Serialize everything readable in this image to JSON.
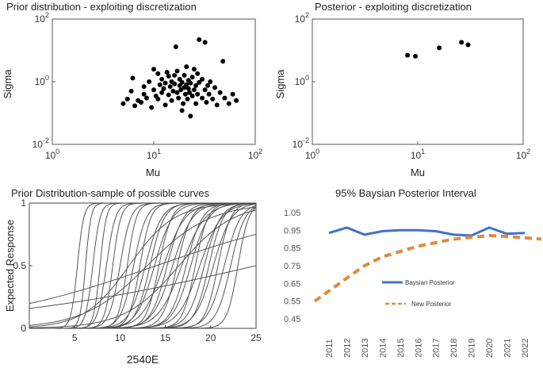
{
  "chart_data": [
    {
      "type": "scatter",
      "title": "Prior distribution - exploiting discretization",
      "xlabel": "Mu",
      "ylabel": "Sigma",
      "xscale": "log",
      "yscale": "log",
      "xlim": [
        1,
        100
      ],
      "ylim": [
        0.01,
        100
      ],
      "xticks": [
        {
          "v": 1,
          "base": "10",
          "exp": "0"
        },
        {
          "v": 10,
          "base": "10",
          "exp": "1"
        },
        {
          "v": 100,
          "base": "10",
          "exp": "2"
        }
      ],
      "yticks": [
        {
          "v": 0.01,
          "base": "10",
          "exp": "-2"
        },
        {
          "v": 1,
          "base": "10",
          "exp": "0"
        },
        {
          "v": 100,
          "base": "10",
          "exp": "2"
        }
      ],
      "color": "#000000",
      "points": [
        [
          5.0,
          0.2
        ],
        [
          5.5,
          0.28
        ],
        [
          6.0,
          0.5
        ],
        [
          6.5,
          0.17
        ],
        [
          6.2,
          1.3
        ],
        [
          7.0,
          0.25
        ],
        [
          7.5,
          0.22
        ],
        [
          8.0,
          0.4
        ],
        [
          8.5,
          0.3
        ],
        [
          8.0,
          0.7
        ],
        [
          9.0,
          1.0
        ],
        [
          9.5,
          0.15
        ],
        [
          10.0,
          2.5
        ],
        [
          10.0,
          0.55
        ],
        [
          10.5,
          0.35
        ],
        [
          11.0,
          1.8
        ],
        [
          11.0,
          0.28
        ],
        [
          11.5,
          0.8
        ],
        [
          12.0,
          0.45
        ],
        [
          12.0,
          1.2
        ],
        [
          12.5,
          0.6
        ],
        [
          13.0,
          0.18
        ],
        [
          13.0,
          0.9
        ],
        [
          13.5,
          2.0
        ],
        [
          14.0,
          0.38
        ],
        [
          14.0,
          1.5
        ],
        [
          14.5,
          0.7
        ],
        [
          15.0,
          0.25
        ],
        [
          15.0,
          1.0
        ],
        [
          15.5,
          0.5
        ],
        [
          16.0,
          0.85
        ],
        [
          16.0,
          1.6
        ],
        [
          16.5,
          13.0
        ],
        [
          17.0,
          0.45
        ],
        [
          17.0,
          2.2
        ],
        [
          17.5,
          0.3
        ],
        [
          18.0,
          0.75
        ],
        [
          18.0,
          1.2
        ],
        [
          18.5,
          0.55
        ],
        [
          19.0,
          0.95
        ],
        [
          19.0,
          0.12
        ],
        [
          19.5,
          0.2
        ],
        [
          20.0,
          0.65
        ],
        [
          20.0,
          1.6
        ],
        [
          20.5,
          0.4
        ],
        [
          21.0,
          0.8
        ],
        [
          21.0,
          3.0
        ],
        [
          21.5,
          0.28
        ],
        [
          22.0,
          0.6
        ],
        [
          22.0,
          1.1
        ],
        [
          22.5,
          0.45
        ],
        [
          23.0,
          0.08
        ],
        [
          23.0,
          0.9
        ],
        [
          24.0,
          0.35
        ],
        [
          24.0,
          1.4
        ],
        [
          25.0,
          0.55
        ],
        [
          25.0,
          2.5
        ],
        [
          26.0,
          0.2
        ],
        [
          26.0,
          0.75
        ],
        [
          27.0,
          1.8
        ],
        [
          27.0,
          0.4
        ],
        [
          28.0,
          22.0
        ],
        [
          28.0,
          0.95
        ],
        [
          30.0,
          0.3
        ],
        [
          30.0,
          1.2
        ],
        [
          32.0,
          0.55
        ],
        [
          32.0,
          18.0
        ],
        [
          33.0,
          0.22
        ],
        [
          34.0,
          0.75
        ],
        [
          35.0,
          0.4
        ],
        [
          36.0,
          1.0
        ],
        [
          38.0,
          0.28
        ],
        [
          40.0,
          0.65
        ],
        [
          42.0,
          0.18
        ],
        [
          45.0,
          0.45
        ],
        [
          48.0,
          4.5
        ],
        [
          50.0,
          0.3
        ],
        [
          55.0,
          0.2
        ],
        [
          60.0,
          0.4
        ],
        [
          65.0,
          0.25
        ]
      ]
    },
    {
      "type": "scatter",
      "title": "Posterior -  exploiting discretization",
      "xlabel": "Mu",
      "ylabel": "Sigma",
      "xscale": "log",
      "yscale": "log",
      "xlim": [
        1,
        100
      ],
      "ylim": [
        0.01,
        100
      ],
      "xticks": [
        {
          "v": 1,
          "base": "10",
          "exp": "0"
        },
        {
          "v": 10,
          "base": "10",
          "exp": "1"
        },
        {
          "v": 100,
          "base": "10",
          "exp": "2"
        }
      ],
      "yticks": [
        {
          "v": 0.01,
          "base": "10",
          "exp": "-2"
        },
        {
          "v": 1,
          "base": "10",
          "exp": "0"
        },
        {
          "v": 100,
          "base": "10",
          "exp": "2"
        }
      ],
      "color": "#000000",
      "points": [
        [
          8.0,
          7.0
        ],
        [
          9.5,
          6.5
        ],
        [
          16.0,
          12.0
        ],
        [
          26.0,
          18.0
        ],
        [
          30.0,
          15.0
        ]
      ]
    },
    {
      "type": "line",
      "title": "Prior Distribution-sample of possible curves",
      "xlabel": "2540E",
      "ylabel": "Expected Response",
      "xlim": [
        0,
        25
      ],
      "ylim": [
        0,
        1
      ],
      "xticks": [
        5,
        10,
        15,
        20,
        25
      ],
      "yticks": [
        0,
        0.5,
        1
      ],
      "color": "#555555",
      "curves": [
        {
          "mu": 5.3,
          "s": 0.35
        },
        {
          "mu": 6.2,
          "s": 0.3
        },
        {
          "mu": 7.0,
          "s": 0.4
        },
        {
          "mu": 7.8,
          "s": 0.35
        },
        {
          "mu": 8.5,
          "s": 0.5
        },
        {
          "mu": 9.2,
          "s": 0.45
        },
        {
          "mu": 10.0,
          "s": 0.6
        },
        {
          "mu": 10.8,
          "s": 0.5
        },
        {
          "mu": 11.5,
          "s": 0.7
        },
        {
          "mu": 12.2,
          "s": 0.6
        },
        {
          "mu": 12.8,
          "s": 0.9
        },
        {
          "mu": 13.3,
          "s": 0.8
        },
        {
          "mu": 13.8,
          "s": 1.0
        },
        {
          "mu": 14.3,
          "s": 0.7
        },
        {
          "mu": 14.8,
          "s": 1.2
        },
        {
          "mu": 15.2,
          "s": 0.9
        },
        {
          "mu": 15.8,
          "s": 1.1
        },
        {
          "mu": 16.3,
          "s": 0.8
        },
        {
          "mu": 16.8,
          "s": 1.3
        },
        {
          "mu": 17.3,
          "s": 0.9
        },
        {
          "mu": 17.8,
          "s": 1.0
        },
        {
          "mu": 18.3,
          "s": 0.7
        },
        {
          "mu": 18.8,
          "s": 1.2
        },
        {
          "mu": 19.3,
          "s": 0.9
        },
        {
          "mu": 19.8,
          "s": 0.8
        },
        {
          "mu": 20.3,
          "s": 1.0
        },
        {
          "mu": 20.8,
          "s": 0.7
        },
        {
          "mu": 21.5,
          "s": 0.9
        },
        {
          "mu": 22.2,
          "s": 0.8
        },
        {
          "mu": 23.0,
          "s": 0.6
        },
        {
          "mu": 11.0,
          "s": 2.5
        },
        {
          "mu": 16.5,
          "s": 3.0
        },
        {
          "mu": 13.0,
          "s": 3.5
        },
        {
          "mu": 14.0,
          "s": 10.0
        },
        {
          "mu": 25.0,
          "s": 15.0
        }
      ]
    },
    {
      "type": "line",
      "title": "95% Baysian Posterior Interval",
      "xlabel": "",
      "ylabel": "",
      "ylim": [
        0.45,
        1.05
      ],
      "yticks": [
        "1.05",
        "0.95",
        "0.85",
        "0.75",
        "0.65",
        "0.55",
        "0.45"
      ],
      "categories": [
        "2011",
        "2012",
        "2013",
        "2014",
        "2015",
        "2016",
        "2017",
        "2018",
        "2019",
        "2020",
        "2021",
        "2022"
      ],
      "legend_position": "lower-left",
      "series": [
        {
          "name": "Baysian Posterior",
          "color": "#4472c4",
          "style": "solid",
          "values": [
            0.935,
            0.965,
            0.925,
            0.945,
            0.95,
            0.95,
            0.945,
            0.925,
            0.92,
            0.965,
            0.93,
            0.935
          ]
        },
        {
          "name": "New Posterior",
          "color": "#e08a3c",
          "style": "dashed",
          "values": [
            0.55,
            0.68,
            0.75,
            0.8,
            0.83,
            0.86,
            0.88,
            0.9,
            0.91,
            0.92,
            0.915,
            0.9
          ]
        }
      ]
    }
  ]
}
